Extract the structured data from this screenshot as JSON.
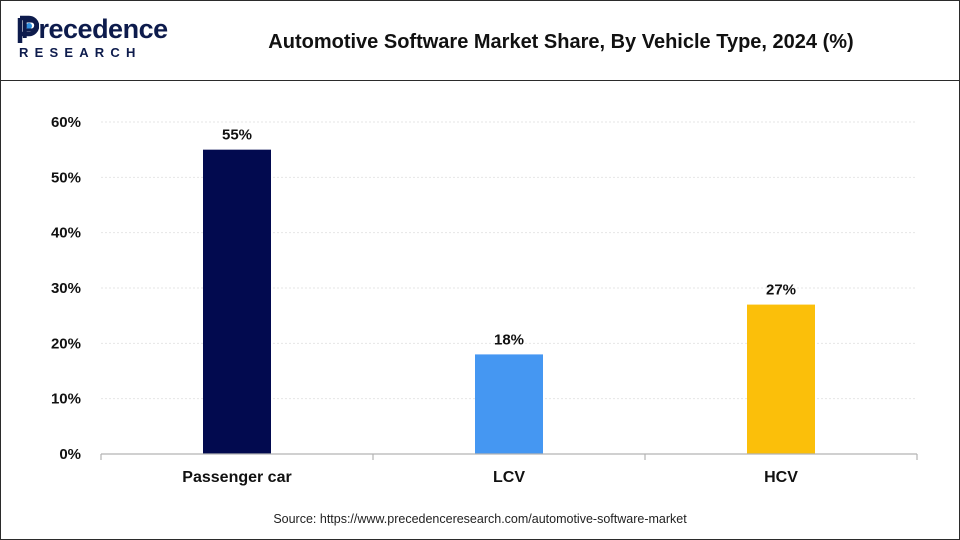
{
  "logo": {
    "word": "Precedence",
    "sub": "RESEARCH"
  },
  "chart_data": {
    "type": "bar",
    "title": "Automotive Software Market Share, By Vehicle Type, 2024 (%)",
    "categories": [
      "Passenger car",
      "LCV",
      "HCV"
    ],
    "values": [
      55,
      18,
      27
    ],
    "data_labels": [
      "55%",
      "18%",
      "27%"
    ],
    "colors": [
      "#020a4f",
      "#4597f2",
      "#fbbf0a"
    ],
    "yticks": [
      0,
      10,
      20,
      30,
      40,
      50,
      60
    ],
    "ytick_labels": [
      "0%",
      "10%",
      "20%",
      "30%",
      "40%",
      "50%",
      "60%"
    ],
    "ylim": [
      0,
      60
    ],
    "xlabel": "",
    "ylabel": "",
    "grid": true,
    "legend": "none"
  },
  "source": "Source: https://www.precedenceresearch.com/automotive-software-market"
}
